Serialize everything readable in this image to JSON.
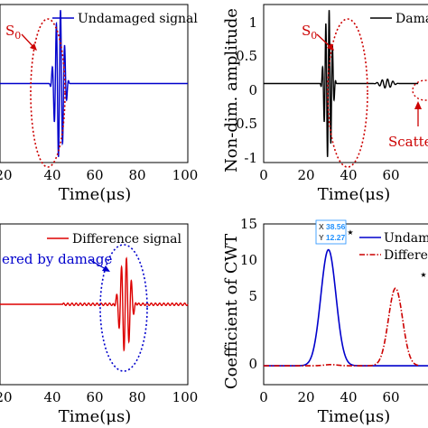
{
  "colors": {
    "undamaged": "#0000cc",
    "damaged": "#000000",
    "difference": "#dd0000",
    "annotation_red": "#cc0000",
    "annotation_blue": "#0000cc",
    "datatip_blue": "#1e90ff"
  },
  "chart_data": [
    {
      "type": "line",
      "panel": "top-left",
      "xlabel": "Time(μs)",
      "ylabel": "",
      "xlim": [
        10,
        100
      ],
      "ylim": [
        -1.05,
        1.05
      ],
      "xticks": [
        "20",
        "40",
        "60",
        "80",
        "100"
      ],
      "series": [
        {
          "name": "Undamaged signal",
          "color": "#0000cc",
          "burst": {
            "center": 38.5,
            "half_width": 5,
            "cycles": 5,
            "amplitude": 1.0
          }
        }
      ],
      "legend": {
        "position": "top-right"
      },
      "annotations": [
        {
          "text": "S",
          "subscript": "0"
        }
      ]
    },
    {
      "type": "line",
      "panel": "top-right",
      "xlabel": "Time(μs)",
      "ylabel": "Non-dim. amplitude",
      "xlim": [
        0,
        100
      ],
      "ylim": [
        -1.05,
        1.05
      ],
      "xticks": [
        "0",
        "20",
        "40",
        "60"
      ],
      "yticks": [
        "1",
        "0.5",
        "0",
        "-0.5",
        "-1"
      ],
      "series": [
        {
          "name": "Damaged signal",
          "color": "#000000",
          "bursts": [
            {
              "center": 38.5,
              "half_width": 5,
              "cycles": 5,
              "amplitude": 1.0
            },
            {
              "center": 73,
              "half_width": 8,
              "cycles": 5,
              "amplitude": 0.06
            }
          ]
        }
      ],
      "legend": {
        "position": "top-right",
        "label_visible": "Dama"
      },
      "annotations": [
        {
          "text": "S",
          "subscript": "0"
        },
        {
          "text": "Scattered b"
        }
      ]
    },
    {
      "type": "line",
      "panel": "bottom-left",
      "xlabel": "Time(μs)",
      "ylabel": "",
      "xlim": [
        10,
        100
      ],
      "ylim": [
        -1.05,
        1.05
      ],
      "xticks": [
        "20",
        "40",
        "60",
        "80",
        "100"
      ],
      "series": [
        {
          "name": "Difference signal",
          "color": "#dd0000",
          "bursts": [
            {
              "center": 70,
              "half_width": 6,
              "cycles": 5,
              "amplitude": 0.6
            }
          ],
          "ripple_amplitude": 0.015
        }
      ],
      "legend": {
        "position": "top-right"
      },
      "annotations": [
        {
          "text": "ered by damage"
        }
      ]
    },
    {
      "type": "line",
      "panel": "bottom-right",
      "xlabel": "Time(μs)",
      "ylabel": "Coefficient of CWT",
      "xlim": [
        0,
        100
      ],
      "ylim": [
        -2,
        15
      ],
      "xticks": [
        "0",
        "20",
        "40",
        "60"
      ],
      "yticks": [
        "15",
        "10",
        "5",
        "0"
      ],
      "series": [
        {
          "name": "Undamaged",
          "color": "#0000cc",
          "peak_x": 38.56,
          "peak_y": 12.27,
          "sigma": 4.5
        },
        {
          "name": "Difference",
          "color": "#cc0000",
          "peak_x": 78.5,
          "peak_y": 8.2,
          "sigma": 4.2
        }
      ],
      "legend": {
        "position": "top-right",
        "labels_visible": [
          "Undama",
          "Differe"
        ]
      },
      "datatip": {
        "x_label": "X",
        "x_value": "38.56",
        "y_label": "Y",
        "y_value": "12.27"
      }
    }
  ]
}
